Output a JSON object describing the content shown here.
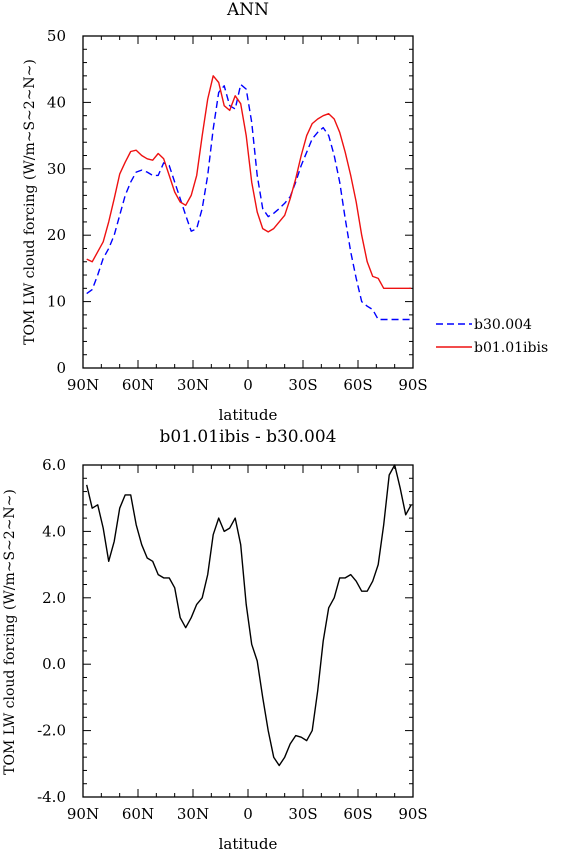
{
  "colors": {
    "b30": "#0000ff",
    "ibis": "#ee1111",
    "diff": "#000000"
  },
  "chart_data": [
    {
      "type": "line",
      "title": "ANN",
      "xlabel": "latitude",
      "ylabel": "TOM LW cloud forcing (W/m~S~2~N~)",
      "xlim": [
        -90,
        90
      ],
      "ylim": [
        0,
        50
      ],
      "xticks": [
        -90,
        -60,
        -30,
        0,
        30,
        60,
        90
      ],
      "xtick_labels": [
        "90N",
        "60N",
        "30N",
        "0",
        "30S",
        "60S",
        "90S"
      ],
      "yticks": [
        0,
        10,
        20,
        30,
        40,
        50
      ],
      "ytick_labels": [
        "0",
        "10",
        "20",
        "30",
        "40",
        "50"
      ],
      "legend_position": "right, outside plot",
      "series": [
        {
          "name": "b30.004",
          "style": "dashed",
          "x": [
            -88,
            -85,
            -82,
            -79,
            -76,
            -73,
            -70,
            -67,
            -64,
            -61,
            -58,
            -55,
            -52,
            -49,
            -46,
            -43,
            -40,
            -37,
            -34,
            -31,
            -28,
            -25,
            -22,
            -19,
            -16,
            -13,
            -10,
            -7,
            -4,
            -1,
            2,
            5,
            8,
            11,
            14,
            17,
            20,
            23,
            26,
            29,
            32,
            35,
            38,
            41,
            44,
            47,
            50,
            53,
            56,
            59,
            62,
            65,
            68,
            71,
            74,
            77,
            80,
            83,
            86,
            89
          ],
          "values": [
            11.2,
            11.8,
            14.0,
            16.5,
            18.0,
            20.0,
            23.0,
            26.0,
            28.0,
            29.5,
            29.8,
            29.5,
            29.0,
            29.0,
            30.9,
            30.5,
            28.0,
            25.5,
            23.0,
            20.6,
            21.0,
            24.0,
            29.0,
            36.0,
            41.5,
            42.5,
            39.5,
            39.0,
            42.7,
            42.0,
            37.0,
            29.0,
            24.0,
            22.8,
            23.3,
            24.0,
            24.8,
            25.8,
            28.0,
            30.5,
            32.5,
            34.5,
            35.5,
            36.2,
            35.0,
            32.0,
            28.0,
            22.5,
            17.5,
            13.5,
            10.0,
            9.3,
            8.8,
            7.3,
            7.3,
            7.3,
            7.3,
            7.3,
            7.3,
            7.3
          ]
        },
        {
          "name": "b01.01ibis",
          "style": "solid",
          "x": [
            -88,
            -85,
            -82,
            -79,
            -76,
            -73,
            -70,
            -67,
            -64,
            -61,
            -58,
            -55,
            -52,
            -49,
            -46,
            -43,
            -40,
            -37,
            -34,
            -31,
            -28,
            -25,
            -22,
            -19,
            -16,
            -13,
            -10,
            -7,
            -4,
            -1,
            2,
            5,
            8,
            11,
            14,
            17,
            20,
            23,
            26,
            29,
            32,
            35,
            38,
            41,
            44,
            47,
            50,
            53,
            56,
            59,
            62,
            65,
            68,
            71,
            74,
            77,
            80,
            83,
            86,
            89
          ],
          "values": [
            16.4,
            16.0,
            17.5,
            19.0,
            22.0,
            25.5,
            29.2,
            31.0,
            32.6,
            32.8,
            32.0,
            31.5,
            31.3,
            32.3,
            31.5,
            29.0,
            26.5,
            25.0,
            24.5,
            26.0,
            29.0,
            35.0,
            40.5,
            44.0,
            43.0,
            39.5,
            38.8,
            41.0,
            39.8,
            35.0,
            28.0,
            23.5,
            21.0,
            20.5,
            21.0,
            22.0,
            23.0,
            25.5,
            28.5,
            32.0,
            35.0,
            36.8,
            37.5,
            38.0,
            38.3,
            37.5,
            35.5,
            32.5,
            29.0,
            25.0,
            20.0,
            16.0,
            13.8,
            13.5,
            12.0,
            12.0,
            12.0,
            12.0,
            12.0,
            12.0
          ]
        }
      ]
    },
    {
      "type": "line",
      "title": "b01.01ibis - b30.004",
      "xlabel": "latitude",
      "ylabel": "TOM LW cloud forcing (W/m~S~2~N~)",
      "xlim": [
        -90,
        90
      ],
      "ylim": [
        -4.0,
        6.0
      ],
      "xticks": [
        -90,
        -60,
        -30,
        0,
        30,
        60,
        90
      ],
      "xtick_labels": [
        "90N",
        "60N",
        "30N",
        "0",
        "30S",
        "60S",
        "90S"
      ],
      "yticks": [
        -4.0,
        -2.0,
        0.0,
        2.0,
        4.0,
        6.0
      ],
      "ytick_labels": [
        "-4.0",
        "-2.0",
        "0.0",
        "2.0",
        "4.0",
        "6.0"
      ],
      "series": [
        {
          "style": "solid",
          "x": [
            -88,
            -85,
            -82,
            -79,
            -76,
            -73,
            -70,
            -67,
            -64,
            -61,
            -58,
            -55,
            -52,
            -49,
            -46,
            -43,
            -40,
            -37,
            -34,
            -31,
            -28,
            -25,
            -22,
            -19,
            -16,
            -13,
            -10,
            -7,
            -4,
            -1,
            2,
            5,
            8,
            11,
            14,
            17,
            20,
            23,
            26,
            29,
            32,
            35,
            38,
            41,
            44,
            47,
            50,
            53,
            56,
            59,
            62,
            65,
            68,
            71,
            74,
            77,
            80,
            83,
            86,
            89
          ],
          "values": [
            5.4,
            4.7,
            4.8,
            4.1,
            3.1,
            3.7,
            4.7,
            5.1,
            5.1,
            4.2,
            3.6,
            3.2,
            3.1,
            2.7,
            2.6,
            2.6,
            2.3,
            1.4,
            1.1,
            1.4,
            1.8,
            2.0,
            2.7,
            3.9,
            4.4,
            4.0,
            4.1,
            4.4,
            3.6,
            1.8,
            0.6,
            0.1,
            -1.0,
            -2.0,
            -2.8,
            -3.05,
            -2.8,
            -2.4,
            -2.15,
            -2.2,
            -2.3,
            -2.0,
            -0.8,
            0.7,
            1.7,
            2.0,
            2.6,
            2.6,
            2.7,
            2.5,
            2.2,
            2.2,
            2.5,
            3.0,
            4.2,
            5.7,
            6.0,
            5.3,
            4.5,
            4.8
          ]
        }
      ]
    }
  ]
}
